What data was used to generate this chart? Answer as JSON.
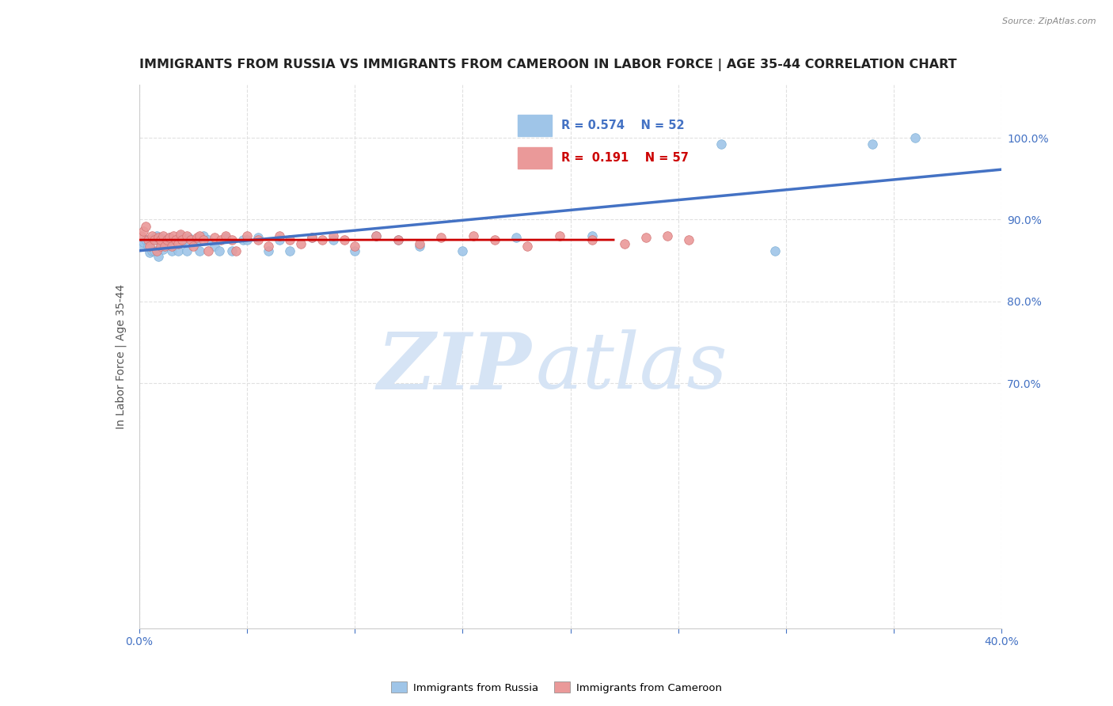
{
  "title": "IMMIGRANTS FROM RUSSIA VS IMMIGRANTS FROM CAMEROON IN LABOR FORCE | AGE 35-44 CORRELATION CHART",
  "source": "Source: ZipAtlas.com",
  "ylabel": "In Labor Force | Age 35-44",
  "xlim": [
    0.0,
    0.4
  ],
  "ylim": [
    0.4,
    1.065
  ],
  "ytick_positions": [
    0.7,
    0.8,
    0.9,
    1.0
  ],
  "ytick_labels": [
    "70.0%",
    "80.0%",
    "90.0%",
    "100.0%"
  ],
  "xticks": [
    0.0,
    0.05,
    0.1,
    0.15,
    0.2,
    0.25,
    0.3,
    0.35,
    0.4
  ],
  "xtick_labels": [
    "0.0%",
    "",
    "",
    "",
    "",
    "",
    "",
    "",
    "40.0%"
  ],
  "russia_R": 0.574,
  "russia_N": 52,
  "cameroon_R": 0.191,
  "cameroon_N": 57,
  "russia_color": "#9fc5e8",
  "cameroon_color": "#ea9999",
  "russia_line_color": "#4472c4",
  "cameroon_line_color": "#cc0000",
  "dashed_line_color": "#b4a7d6",
  "russia_scatter_x": [
    0.001,
    0.002,
    0.003,
    0.005,
    0.005,
    0.006,
    0.007,
    0.007,
    0.008,
    0.008,
    0.009,
    0.009,
    0.01,
    0.01,
    0.011,
    0.011,
    0.012,
    0.012,
    0.013,
    0.014,
    0.015,
    0.015,
    0.016,
    0.017,
    0.018,
    0.019,
    0.02,
    0.021,
    0.022,
    0.025,
    0.027,
    0.028,
    0.03,
    0.032,
    0.035,
    0.038,
    0.04,
    0.042,
    0.045,
    0.048,
    0.055,
    0.06,
    0.065,
    0.07,
    0.08,
    0.09,
    0.1,
    0.11,
    0.13,
    0.15,
    0.21,
    0.36
  ],
  "russia_scatter_y": [
    0.868,
    0.872,
    0.88,
    0.862,
    0.875,
    0.87,
    0.868,
    0.876,
    0.868,
    0.88,
    0.855,
    0.864,
    0.87,
    0.878,
    0.86,
    0.872,
    0.868,
    0.88,
    0.878,
    0.875,
    0.862,
    0.87,
    0.872,
    0.862,
    0.878,
    0.878,
    0.875,
    0.868,
    0.88,
    0.87,
    0.862,
    0.872,
    0.868,
    0.875,
    0.878,
    0.875,
    0.872,
    0.868,
    0.875,
    0.86,
    0.88,
    0.88,
    0.868,
    0.862,
    0.878,
    0.875,
    0.875,
    0.868,
    0.875,
    0.862,
    0.88,
    1.0
  ],
  "cameroon_scatter_x": [
    0.001,
    0.002,
    0.003,
    0.004,
    0.005,
    0.005,
    0.006,
    0.007,
    0.007,
    0.008,
    0.008,
    0.009,
    0.009,
    0.01,
    0.01,
    0.011,
    0.011,
    0.012,
    0.013,
    0.014,
    0.015,
    0.016,
    0.017,
    0.018,
    0.019,
    0.02,
    0.022,
    0.024,
    0.026,
    0.028,
    0.03,
    0.032,
    0.035,
    0.038,
    0.04,
    0.042,
    0.045,
    0.048,
    0.055,
    0.06,
    0.065,
    0.07,
    0.075,
    0.08,
    0.09,
    0.095,
    0.1,
    0.11,
    0.115,
    0.12,
    0.13,
    0.14,
    0.15,
    0.16,
    0.18,
    0.2,
    0.22
  ],
  "cameroon_scatter_y": [
    0.878,
    0.885,
    0.89,
    0.875,
    0.868,
    0.88,
    0.872,
    0.868,
    0.878,
    0.862,
    0.875,
    0.87,
    0.88,
    0.862,
    0.872,
    0.868,
    0.878,
    0.875,
    0.87,
    0.88,
    0.868,
    0.875,
    0.872,
    0.878,
    0.868,
    0.875,
    0.87,
    0.88,
    0.868,
    0.875,
    0.862,
    0.872,
    0.875,
    0.868,
    0.88,
    0.875,
    0.868,
    0.87,
    0.875,
    0.868,
    0.88,
    0.875,
    0.868,
    0.872,
    0.875,
    0.878,
    0.868,
    0.875,
    0.87,
    0.88,
    0.868,
    0.875,
    0.862,
    0.872,
    0.875,
    0.868,
    0.88
  ],
  "background_color": "#ffffff",
  "grid_color": "#e0e0e0",
  "tick_color": "#4472c4",
  "title_fontsize": 11.5,
  "axis_label_fontsize": 10,
  "tick_fontsize": 10,
  "watermark_zip": "ZIP",
  "watermark_atlas": "atlas",
  "watermark_color": "#d6e4f5"
}
